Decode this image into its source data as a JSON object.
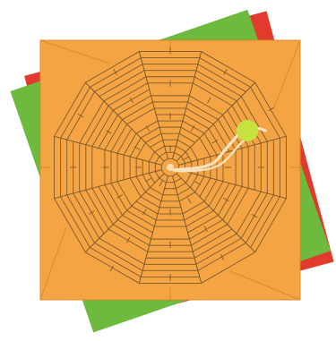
{
  "game": {
    "colors": {
      "background": "#ffffff",
      "board": "#f5a443",
      "board_edge": "#d98a2c",
      "maze_wall": "#7d5a2e",
      "back_tile_green": "#6dba3e",
      "back_tile_red": "#e23a2c",
      "path": "#fbe3c2",
      "ball": "#c6e23e"
    },
    "maze": {
      "shape": "dodecagonal web",
      "sides": 12,
      "rings": 18
    },
    "icons": {
      "player": "ball-icon",
      "goal": "center-hole-icon"
    }
  }
}
